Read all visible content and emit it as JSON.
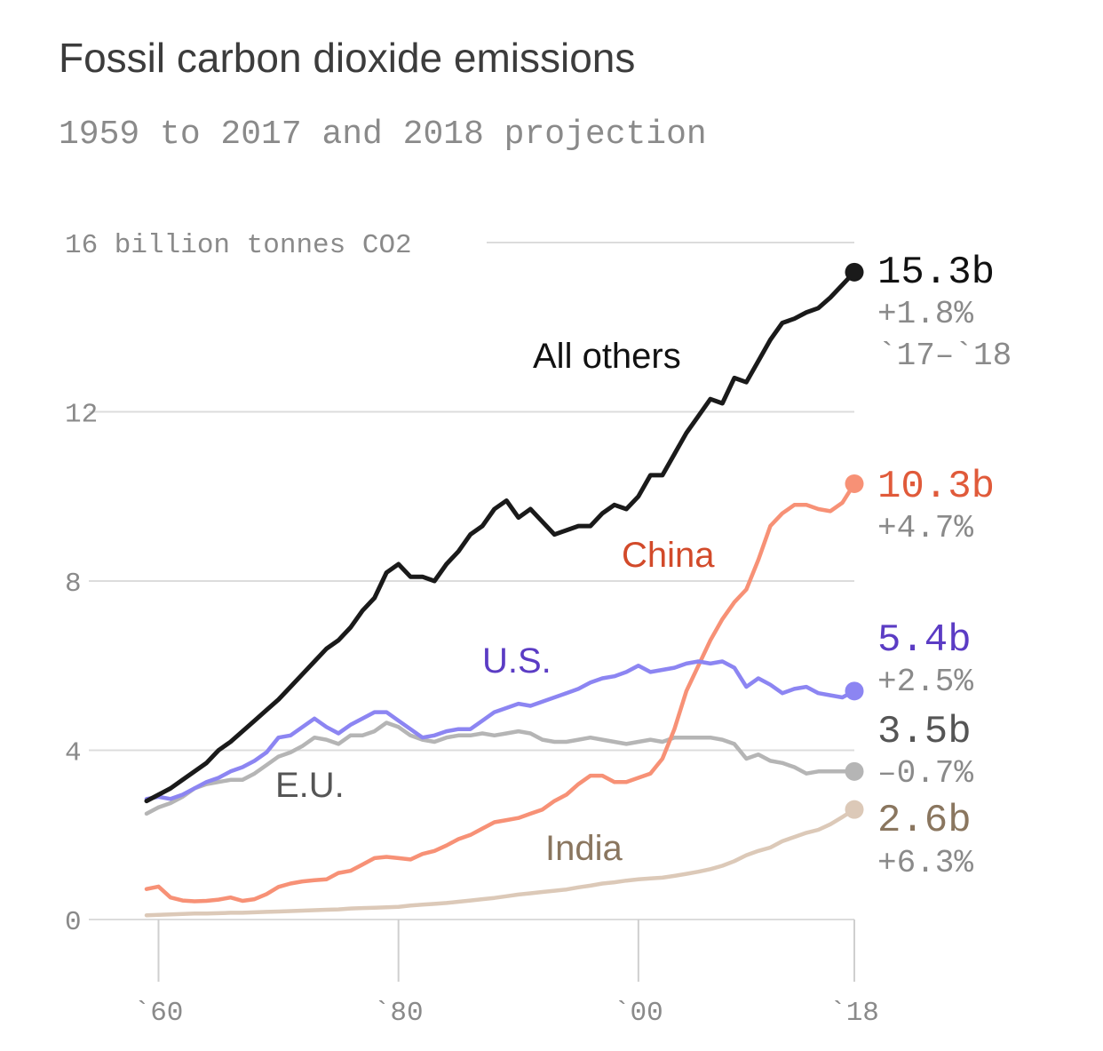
{
  "title": "Fossil carbon dioxide emissions",
  "subtitle": "1959 to 2017 and 2018 projection",
  "chart_data": {
    "type": "line",
    "title": "Fossil carbon dioxide emissions",
    "subtitle": "1959 to 2017 and 2018 projection",
    "ylabel": "16 billion tonnes CO2",
    "ylim": [
      0,
      16
    ],
    "xlim": [
      1959,
      2018
    ],
    "y_ticks": [
      0,
      4,
      8,
      12,
      16
    ],
    "y_tick_labels": [
      "0",
      "4",
      "8",
      "12",
      "16 billion tonnes CO2"
    ],
    "x_ticks": [
      1960,
      1980,
      2000,
      2018
    ],
    "x_tick_labels": [
      "`60",
      "`80",
      "`00",
      "`18"
    ],
    "grid": true,
    "series": [
      {
        "name": "All others",
        "color": "#1a1a1a",
        "end_value_label": "15.3b",
        "change_label": "+1.8%",
        "change_period": "`17–`18",
        "points": [
          [
            1959,
            2.8
          ],
          [
            1960,
            2.95
          ],
          [
            1961,
            3.1
          ],
          [
            1962,
            3.3
          ],
          [
            1963,
            3.5
          ],
          [
            1964,
            3.7
          ],
          [
            1965,
            4.0
          ],
          [
            1966,
            4.2
          ],
          [
            1967,
            4.45
          ],
          [
            1968,
            4.7
          ],
          [
            1969,
            4.95
          ],
          [
            1970,
            5.2
          ],
          [
            1971,
            5.5
          ],
          [
            1972,
            5.8
          ],
          [
            1973,
            6.1
          ],
          [
            1974,
            6.4
          ],
          [
            1975,
            6.6
          ],
          [
            1976,
            6.9
          ],
          [
            1977,
            7.3
          ],
          [
            1978,
            7.6
          ],
          [
            1979,
            8.2
          ],
          [
            1980,
            8.4
          ],
          [
            1981,
            8.1
          ],
          [
            1982,
            8.1
          ],
          [
            1983,
            8.0
          ],
          [
            1984,
            8.4
          ],
          [
            1985,
            8.7
          ],
          [
            1986,
            9.1
          ],
          [
            1987,
            9.3
          ],
          [
            1988,
            9.7
          ],
          [
            1989,
            9.9
          ],
          [
            1990,
            9.5
          ],
          [
            1991,
            9.7
          ],
          [
            1992,
            9.4
          ],
          [
            1993,
            9.1
          ],
          [
            1994,
            9.2
          ],
          [
            1995,
            9.3
          ],
          [
            1996,
            9.3
          ],
          [
            1997,
            9.6
          ],
          [
            1998,
            9.8
          ],
          [
            1999,
            9.7
          ],
          [
            2000,
            10.0
          ],
          [
            2001,
            10.5
          ],
          [
            2002,
            10.5
          ],
          [
            2003,
            11.0
          ],
          [
            2004,
            11.5
          ],
          [
            2005,
            11.9
          ],
          [
            2006,
            12.3
          ],
          [
            2007,
            12.2
          ],
          [
            2008,
            12.8
          ],
          [
            2009,
            12.7
          ],
          [
            2010,
            13.2
          ],
          [
            2011,
            13.7
          ],
          [
            2012,
            14.1
          ],
          [
            2013,
            14.2
          ],
          [
            2014,
            14.35
          ],
          [
            2015,
            14.45
          ],
          [
            2016,
            14.7
          ],
          [
            2017,
            15.0
          ],
          [
            2018,
            15.3
          ]
        ]
      },
      {
        "name": "China",
        "color": "#f79176",
        "label_color": "#d24a2a",
        "value_color": "#e05a3a",
        "end_value_label": "10.3b",
        "change_label": "+4.7%",
        "points": [
          [
            1959,
            0.72
          ],
          [
            1960,
            0.78
          ],
          [
            1961,
            0.52
          ],
          [
            1962,
            0.45
          ],
          [
            1963,
            0.43
          ],
          [
            1964,
            0.44
          ],
          [
            1965,
            0.47
          ],
          [
            1966,
            0.52
          ],
          [
            1967,
            0.44
          ],
          [
            1968,
            0.48
          ],
          [
            1969,
            0.6
          ],
          [
            1970,
            0.77
          ],
          [
            1971,
            0.85
          ],
          [
            1972,
            0.9
          ],
          [
            1973,
            0.93
          ],
          [
            1974,
            0.95
          ],
          [
            1975,
            1.1
          ],
          [
            1976,
            1.15
          ],
          [
            1977,
            1.3
          ],
          [
            1978,
            1.45
          ],
          [
            1979,
            1.48
          ],
          [
            1980,
            1.45
          ],
          [
            1981,
            1.42
          ],
          [
            1982,
            1.55
          ],
          [
            1983,
            1.62
          ],
          [
            1984,
            1.75
          ],
          [
            1985,
            1.9
          ],
          [
            1986,
            2.0
          ],
          [
            1987,
            2.15
          ],
          [
            1988,
            2.3
          ],
          [
            1989,
            2.35
          ],
          [
            1990,
            2.4
          ],
          [
            1991,
            2.5
          ],
          [
            1992,
            2.6
          ],
          [
            1993,
            2.8
          ],
          [
            1994,
            2.95
          ],
          [
            1995,
            3.2
          ],
          [
            1996,
            3.4
          ],
          [
            1997,
            3.4
          ],
          [
            1998,
            3.25
          ],
          [
            1999,
            3.25
          ],
          [
            2000,
            3.35
          ],
          [
            2001,
            3.45
          ],
          [
            2002,
            3.8
          ],
          [
            2003,
            4.5
          ],
          [
            2004,
            5.4
          ],
          [
            2005,
            6.0
          ],
          [
            2006,
            6.6
          ],
          [
            2007,
            7.1
          ],
          [
            2008,
            7.5
          ],
          [
            2009,
            7.8
          ],
          [
            2010,
            8.5
          ],
          [
            2011,
            9.3
          ],
          [
            2012,
            9.6
          ],
          [
            2013,
            9.8
          ],
          [
            2014,
            9.8
          ],
          [
            2015,
            9.7
          ],
          [
            2016,
            9.65
          ],
          [
            2017,
            9.85
          ],
          [
            2018,
            10.3
          ]
        ]
      },
      {
        "name": "U.S.",
        "color": "#8c85f2",
        "label_color": "#5b3cc4",
        "value_color": "#5b3cc4",
        "end_value_label": "5.4b",
        "change_label": "+2.5%",
        "points": [
          [
            1959,
            2.85
          ],
          [
            1960,
            2.9
          ],
          [
            1961,
            2.85
          ],
          [
            1962,
            2.95
          ],
          [
            1963,
            3.1
          ],
          [
            1964,
            3.25
          ],
          [
            1965,
            3.35
          ],
          [
            1966,
            3.5
          ],
          [
            1967,
            3.6
          ],
          [
            1968,
            3.75
          ],
          [
            1969,
            3.95
          ],
          [
            1970,
            4.3
          ],
          [
            1971,
            4.35
          ],
          [
            1972,
            4.55
          ],
          [
            1973,
            4.75
          ],
          [
            1974,
            4.55
          ],
          [
            1975,
            4.4
          ],
          [
            1976,
            4.6
          ],
          [
            1977,
            4.75
          ],
          [
            1978,
            4.9
          ],
          [
            1979,
            4.9
          ],
          [
            1980,
            4.7
          ],
          [
            1981,
            4.5
          ],
          [
            1982,
            4.3
          ],
          [
            1983,
            4.35
          ],
          [
            1984,
            4.45
          ],
          [
            1985,
            4.5
          ],
          [
            1986,
            4.5
          ],
          [
            1987,
            4.7
          ],
          [
            1988,
            4.9
          ],
          [
            1989,
            5.0
          ],
          [
            1990,
            5.1
          ],
          [
            1991,
            5.05
          ],
          [
            1992,
            5.15
          ],
          [
            1993,
            5.25
          ],
          [
            1994,
            5.35
          ],
          [
            1995,
            5.45
          ],
          [
            1996,
            5.6
          ],
          [
            1997,
            5.7
          ],
          [
            1998,
            5.75
          ],
          [
            1999,
            5.85
          ],
          [
            2000,
            6.0
          ],
          [
            2001,
            5.85
          ],
          [
            2002,
            5.9
          ],
          [
            2003,
            5.95
          ],
          [
            2004,
            6.05
          ],
          [
            2005,
            6.1
          ],
          [
            2006,
            6.05
          ],
          [
            2007,
            6.1
          ],
          [
            2008,
            5.95
          ],
          [
            2009,
            5.5
          ],
          [
            2010,
            5.7
          ],
          [
            2011,
            5.55
          ],
          [
            2012,
            5.35
          ],
          [
            2013,
            5.45
          ],
          [
            2014,
            5.5
          ],
          [
            2015,
            5.35
          ],
          [
            2016,
            5.3
          ],
          [
            2017,
            5.25
          ],
          [
            2018,
            5.4
          ]
        ]
      },
      {
        "name": "E.U.",
        "color": "#b5b5b5",
        "label_color": "#555555",
        "value_color": "#555555",
        "end_value_label": "3.5b",
        "change_label": "–0.7%",
        "points": [
          [
            1959,
            2.5
          ],
          [
            1960,
            2.65
          ],
          [
            1961,
            2.75
          ],
          [
            1962,
            2.9
          ],
          [
            1963,
            3.1
          ],
          [
            1964,
            3.2
          ],
          [
            1965,
            3.25
          ],
          [
            1966,
            3.3
          ],
          [
            1967,
            3.3
          ],
          [
            1968,
            3.45
          ],
          [
            1969,
            3.65
          ],
          [
            1970,
            3.85
          ],
          [
            1971,
            3.95
          ],
          [
            1972,
            4.1
          ],
          [
            1973,
            4.3
          ],
          [
            1974,
            4.25
          ],
          [
            1975,
            4.15
          ],
          [
            1976,
            4.35
          ],
          [
            1977,
            4.35
          ],
          [
            1978,
            4.45
          ],
          [
            1979,
            4.65
          ],
          [
            1980,
            4.55
          ],
          [
            1981,
            4.35
          ],
          [
            1982,
            4.25
          ],
          [
            1983,
            4.2
          ],
          [
            1984,
            4.3
          ],
          [
            1985,
            4.35
          ],
          [
            1986,
            4.35
          ],
          [
            1987,
            4.4
          ],
          [
            1988,
            4.35
          ],
          [
            1989,
            4.4
          ],
          [
            1990,
            4.45
          ],
          [
            1991,
            4.4
          ],
          [
            1992,
            4.25
          ],
          [
            1993,
            4.2
          ],
          [
            1994,
            4.2
          ],
          [
            1995,
            4.25
          ],
          [
            1996,
            4.3
          ],
          [
            1997,
            4.25
          ],
          [
            1998,
            4.2
          ],
          [
            1999,
            4.15
          ],
          [
            2000,
            4.2
          ],
          [
            2001,
            4.25
          ],
          [
            2002,
            4.2
          ],
          [
            2003,
            4.3
          ],
          [
            2004,
            4.3
          ],
          [
            2005,
            4.3
          ],
          [
            2006,
            4.3
          ],
          [
            2007,
            4.25
          ],
          [
            2008,
            4.15
          ],
          [
            2009,
            3.8
          ],
          [
            2010,
            3.9
          ],
          [
            2011,
            3.75
          ],
          [
            2012,
            3.7
          ],
          [
            2013,
            3.6
          ],
          [
            2014,
            3.45
          ],
          [
            2015,
            3.5
          ],
          [
            2016,
            3.5
          ],
          [
            2017,
            3.5
          ],
          [
            2018,
            3.5
          ]
        ]
      },
      {
        "name": "India",
        "color": "#dcc9b8",
        "label_color": "#8a765f",
        "value_color": "#8a765f",
        "end_value_label": "2.6b",
        "change_label": "+6.3%",
        "points": [
          [
            1959,
            0.1
          ],
          [
            1960,
            0.11
          ],
          [
            1961,
            0.12
          ],
          [
            1962,
            0.13
          ],
          [
            1963,
            0.14
          ],
          [
            1964,
            0.14
          ],
          [
            1965,
            0.15
          ],
          [
            1966,
            0.16
          ],
          [
            1967,
            0.16
          ],
          [
            1968,
            0.17
          ],
          [
            1969,
            0.18
          ],
          [
            1970,
            0.19
          ],
          [
            1971,
            0.2
          ],
          [
            1972,
            0.21
          ],
          [
            1973,
            0.22
          ],
          [
            1974,
            0.23
          ],
          [
            1975,
            0.24
          ],
          [
            1976,
            0.26
          ],
          [
            1977,
            0.27
          ],
          [
            1978,
            0.28
          ],
          [
            1979,
            0.29
          ],
          [
            1980,
            0.3
          ],
          [
            1981,
            0.33
          ],
          [
            1982,
            0.35
          ],
          [
            1983,
            0.37
          ],
          [
            1984,
            0.39
          ],
          [
            1985,
            0.42
          ],
          [
            1986,
            0.45
          ],
          [
            1987,
            0.48
          ],
          [
            1988,
            0.51
          ],
          [
            1989,
            0.55
          ],
          [
            1990,
            0.59
          ],
          [
            1991,
            0.62
          ],
          [
            1992,
            0.65
          ],
          [
            1993,
            0.68
          ],
          [
            1994,
            0.71
          ],
          [
            1995,
            0.76
          ],
          [
            1996,
            0.8
          ],
          [
            1997,
            0.85
          ],
          [
            1998,
            0.88
          ],
          [
            1999,
            0.92
          ],
          [
            2000,
            0.95
          ],
          [
            2001,
            0.97
          ],
          [
            2002,
            0.99
          ],
          [
            2003,
            1.03
          ],
          [
            2004,
            1.08
          ],
          [
            2005,
            1.13
          ],
          [
            2006,
            1.19
          ],
          [
            2007,
            1.27
          ],
          [
            2008,
            1.38
          ],
          [
            2009,
            1.52
          ],
          [
            2010,
            1.62
          ],
          [
            2011,
            1.7
          ],
          [
            2012,
            1.85
          ],
          [
            2013,
            1.95
          ],
          [
            2014,
            2.05
          ],
          [
            2015,
            2.12
          ],
          [
            2016,
            2.25
          ],
          [
            2017,
            2.42
          ],
          [
            2018,
            2.6
          ]
        ]
      }
    ]
  }
}
